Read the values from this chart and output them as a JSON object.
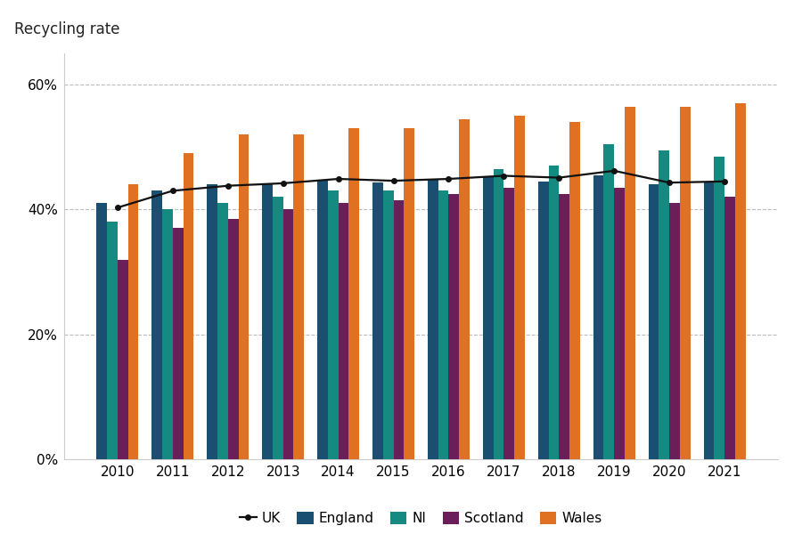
{
  "years": [
    2010,
    2011,
    2012,
    2013,
    2014,
    2015,
    2016,
    2017,
    2018,
    2019,
    2020,
    2021
  ],
  "england": [
    41.0,
    43.0,
    44.0,
    44.2,
    44.8,
    44.3,
    44.9,
    45.2,
    44.5,
    45.5,
    44.0,
    44.4
  ],
  "ni": [
    38.0,
    40.0,
    41.0,
    42.0,
    43.0,
    43.0,
    43.0,
    46.5,
    47.0,
    50.5,
    49.5,
    48.5
  ],
  "scotland": [
    32.0,
    37.0,
    38.5,
    40.0,
    41.0,
    41.5,
    42.5,
    43.5,
    42.5,
    43.5,
    41.0,
    42.0
  ],
  "wales": [
    44.0,
    49.0,
    52.0,
    52.0,
    53.0,
    53.0,
    54.5,
    55.0,
    54.0,
    56.5,
    56.5,
    57.0
  ],
  "uk": [
    40.3,
    43.0,
    43.8,
    44.2,
    44.9,
    44.6,
    44.9,
    45.4,
    45.1,
    46.2,
    44.3,
    44.5
  ],
  "england_color": "#1b4f72",
  "ni_color": "#148a80",
  "scotland_color": "#6b1f5a",
  "wales_color": "#e07022",
  "uk_color": "#111111",
  "title": "Recycling rate",
  "ylim": [
    0,
    65
  ],
  "yticks": [
    0,
    20,
    40,
    60
  ],
  "ytick_labels": [
    "0%",
    "20%",
    "40%",
    "60%"
  ],
  "background_color": "#ffffff",
  "grid_color": "#bbbbbb",
  "bar_width": 0.19
}
